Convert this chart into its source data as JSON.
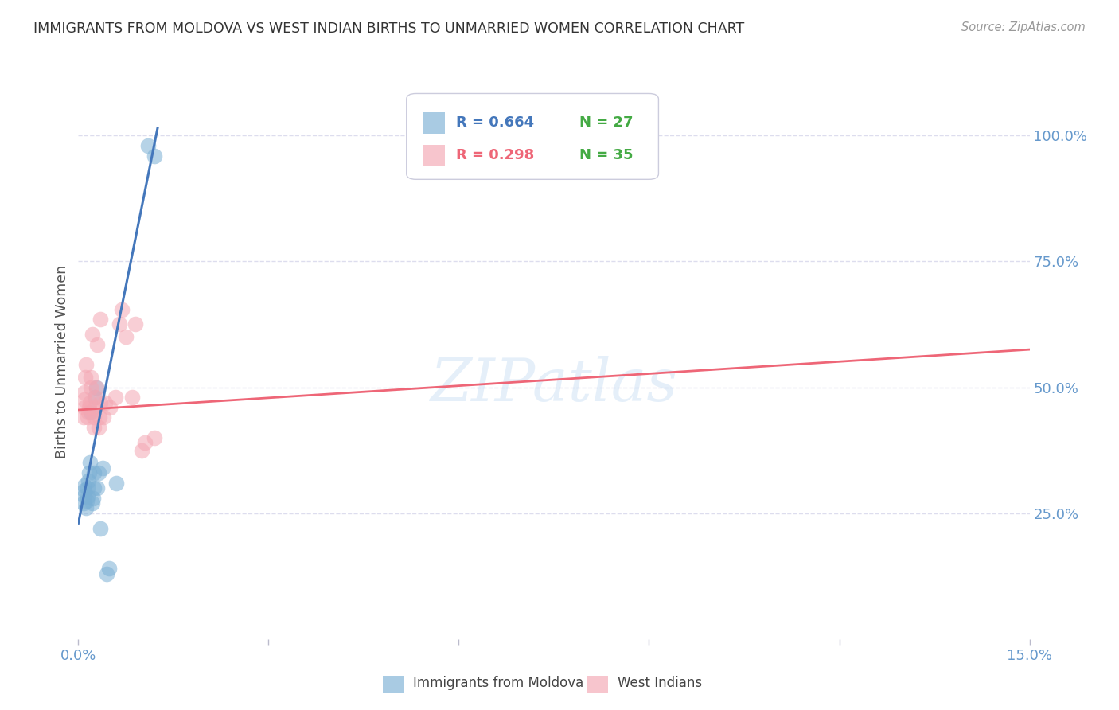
{
  "title": "IMMIGRANTS FROM MOLDOVA VS WEST INDIAN BIRTHS TO UNMARRIED WOMEN CORRELATION CHART",
  "source": "Source: ZipAtlas.com",
  "ylabel": "Births to Unmarried Women",
  "ytick_labels": [
    "25.0%",
    "50.0%",
    "75.0%",
    "100.0%"
  ],
  "ytick_values": [
    0.25,
    0.5,
    0.75,
    1.0
  ],
  "xlim": [
    0.0,
    0.15
  ],
  "ylim": [
    0.0,
    1.1
  ],
  "watermark": "ZIPatlas",
  "legend_blue_R": "R = 0.664",
  "legend_blue_N": "N = 27",
  "legend_pink_R": "R = 0.298",
  "legend_pink_N": "N = 35",
  "blue_label": "Immigrants from Moldova",
  "pink_label": "West Indians",
  "blue_color": "#7BAFD4",
  "pink_color": "#F4A7B3",
  "blue_line_color": "#4477BB",
  "pink_line_color": "#EE6677",
  "title_color": "#333333",
  "axis_color": "#6699CC",
  "grid_color": "#DDDDEE",
  "legend_R_color": "#4477BB",
  "legend_N_color": "#44AA44",
  "blue_dots": [
    [
      0.0008,
      0.27
    ],
    [
      0.0009,
      0.285
    ],
    [
      0.001,
      0.295
    ],
    [
      0.001,
      0.305
    ],
    [
      0.0012,
      0.26
    ],
    [
      0.0013,
      0.275
    ],
    [
      0.0014,
      0.283
    ],
    [
      0.0015,
      0.3
    ],
    [
      0.0016,
      0.315
    ],
    [
      0.0017,
      0.33
    ],
    [
      0.0018,
      0.35
    ],
    [
      0.002,
      0.45
    ],
    [
      0.0022,
      0.27
    ],
    [
      0.0023,
      0.28
    ],
    [
      0.0024,
      0.3
    ],
    [
      0.0025,
      0.33
    ],
    [
      0.0026,
      0.48
    ],
    [
      0.0028,
      0.5
    ],
    [
      0.003,
      0.3
    ],
    [
      0.0032,
      0.33
    ],
    [
      0.0035,
      0.22
    ],
    [
      0.0038,
      0.34
    ],
    [
      0.0045,
      0.13
    ],
    [
      0.0048,
      0.14
    ],
    [
      0.006,
      0.31
    ],
    [
      0.011,
      0.98
    ],
    [
      0.012,
      0.96
    ]
  ],
  "pink_dots": [
    [
      0.0008,
      0.44
    ],
    [
      0.0009,
      0.46
    ],
    [
      0.001,
      0.475
    ],
    [
      0.001,
      0.49
    ],
    [
      0.0011,
      0.52
    ],
    [
      0.0012,
      0.545
    ],
    [
      0.0015,
      0.44
    ],
    [
      0.0016,
      0.45
    ],
    [
      0.0017,
      0.46
    ],
    [
      0.0018,
      0.47
    ],
    [
      0.0019,
      0.5
    ],
    [
      0.002,
      0.52
    ],
    [
      0.0022,
      0.605
    ],
    [
      0.0024,
      0.42
    ],
    [
      0.0025,
      0.44
    ],
    [
      0.0026,
      0.46
    ],
    [
      0.0027,
      0.48
    ],
    [
      0.0028,
      0.5
    ],
    [
      0.003,
      0.585
    ],
    [
      0.0032,
      0.42
    ],
    [
      0.0033,
      0.44
    ],
    [
      0.0034,
      0.47
    ],
    [
      0.0035,
      0.635
    ],
    [
      0.004,
      0.44
    ],
    [
      0.0042,
      0.47
    ],
    [
      0.005,
      0.46
    ],
    [
      0.0058,
      0.48
    ],
    [
      0.0065,
      0.625
    ],
    [
      0.0068,
      0.655
    ],
    [
      0.0075,
      0.6
    ],
    [
      0.0085,
      0.48
    ],
    [
      0.009,
      0.625
    ],
    [
      0.01,
      0.375
    ],
    [
      0.0105,
      0.39
    ],
    [
      0.012,
      0.4
    ]
  ],
  "blue_line_x": [
    0.0,
    0.0125
  ],
  "blue_line_y": [
    0.23,
    1.015
  ],
  "pink_line_x": [
    0.0,
    0.15
  ],
  "pink_line_y": [
    0.455,
    0.575
  ]
}
